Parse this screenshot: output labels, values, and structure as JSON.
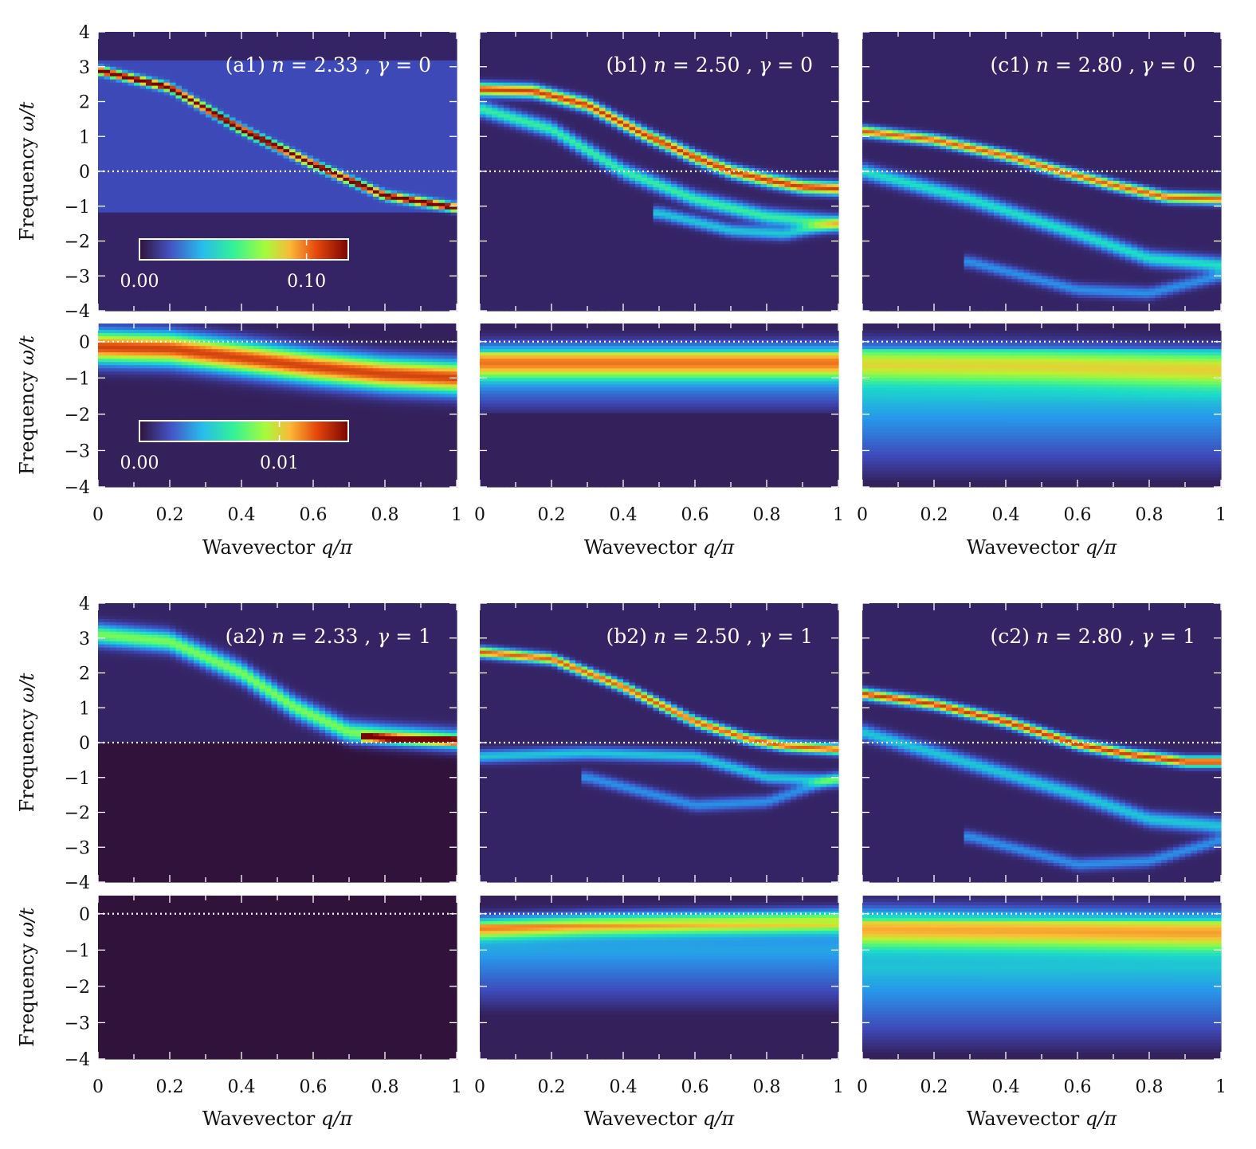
{
  "figure": {
    "xlabel_prefix": "Wavevector",
    "xlabel_math": "q/π",
    "ylabel_prefix": "Frequency",
    "ylabel_math": "ω/t",
    "x_ticks": [
      "0",
      "0.2",
      "0.4",
      "0.6",
      "0.8",
      "1"
    ],
    "y_ticks_top": [
      "4",
      "3",
      "2",
      "1",
      "0",
      "−1",
      "−2",
      "−3",
      "−4"
    ],
    "y_ticks_bottom": [
      "0",
      "−1",
      "−2",
      "−3",
      "−4"
    ],
    "colorbar_top": {
      "min_label": "0.00",
      "max_label": "0.10"
    },
    "colorbar_bottom": {
      "min_label": "0.00",
      "max_label": "0.01"
    }
  },
  "chart_data": [
    {
      "type": "heatmap",
      "id": "a1",
      "title": "(a1) n = 2.33 , γ = 0",
      "label_tag": "(a1)",
      "n": "2.33",
      "gamma": "0",
      "xlim": [
        0,
        1
      ],
      "ylim_top": [
        -4,
        4
      ],
      "ylim_bottom": [
        -4,
        0.5
      ],
      "upper_bands": [
        {
          "x": [
            0,
            0.2,
            0.4,
            0.6,
            0.8,
            1.0
          ],
          "y": [
            2.9,
            2.4,
            1.2,
            0.2,
            -0.7,
            -1.05
          ],
          "width": 0.08,
          "intensity": 1.0
        }
      ],
      "lower_bands": [
        {
          "x": [
            0,
            0.2,
            0.4,
            0.6,
            0.8,
            1.0
          ],
          "y": [
            -0.15,
            -0.2,
            -0.45,
            -0.7,
            -0.9,
            -1.0
          ],
          "width": 0.3,
          "intensity": 0.85
        }
      ]
    },
    {
      "type": "heatmap",
      "id": "b1",
      "title": "(b1) n = 2.50 , γ = 0",
      "label_tag": "(b1)",
      "n": "2.50",
      "gamma": "0",
      "xlim": [
        0,
        1
      ],
      "ylim_top": [
        -4,
        4
      ],
      "ylim_bottom": [
        -4,
        0.5
      ],
      "upper_bands": [
        {
          "x": [
            0,
            0.15,
            0.3,
            0.45,
            0.6,
            0.7,
            0.8,
            0.9,
            1.0
          ],
          "y": [
            2.35,
            2.3,
            1.9,
            1.1,
            0.4,
            0.0,
            -0.25,
            -0.45,
            -0.5
          ],
          "width": 0.12,
          "intensity": 0.85
        },
        {
          "x": [
            0,
            0.2,
            0.4,
            0.6,
            0.8,
            1.0
          ],
          "y": [
            1.8,
            1.2,
            0.0,
            -0.8,
            -1.3,
            -1.5
          ],
          "width": 0.15,
          "intensity": 0.4
        },
        {
          "x": [
            0.5,
            0.7,
            0.85,
            1.0
          ],
          "y": [
            -1.2,
            -1.7,
            -1.8,
            -1.5
          ],
          "width": 0.12,
          "intensity": 0.3
        }
      ],
      "lower_bands": [
        {
          "x": [
            0,
            0.1,
            0.3,
            0.6,
            1.0
          ],
          "y": [
            -0.55,
            -0.55,
            -0.55,
            -0.55,
            -0.55
          ],
          "width": 0.3,
          "intensity": 0.55
        }
      ]
    },
    {
      "type": "heatmap",
      "id": "c1",
      "title": "(c1) n = 2.80 , γ = 0",
      "label_tag": "(c1)",
      "n": "2.80",
      "gamma": "0",
      "xlim": [
        0,
        1
      ],
      "ylim_top": [
        -4,
        4
      ],
      "ylim_bottom": [
        -4,
        0.5
      ],
      "upper_bands": [
        {
          "x": [
            0,
            0.2,
            0.4,
            0.55,
            0.7,
            0.85,
            1.0
          ],
          "y": [
            1.15,
            0.9,
            0.45,
            0.0,
            -0.4,
            -0.75,
            -0.8
          ],
          "width": 0.1,
          "intensity": 0.8
        },
        {
          "x": [
            0,
            0.3,
            0.6,
            0.8,
            1.0
          ],
          "y": [
            0.0,
            -0.8,
            -1.8,
            -2.5,
            -2.7
          ],
          "width": 0.15,
          "intensity": 0.35
        },
        {
          "x": [
            0.3,
            0.6,
            0.8,
            1.0
          ],
          "y": [
            -2.6,
            -3.4,
            -3.5,
            -3.0
          ],
          "width": 0.12,
          "intensity": 0.2
        }
      ],
      "lower_bands": [
        {
          "x": [
            0,
            0.5,
            1.0
          ],
          "y": [
            -0.6,
            -0.65,
            -0.75
          ],
          "width": 0.35,
          "intensity": 0.45
        }
      ]
    },
    {
      "type": "heatmap",
      "id": "a2",
      "title": "(a2) n = 2.33 , γ = 1",
      "label_tag": "(a2)",
      "n": "2.33",
      "gamma": "1",
      "xlim": [
        0,
        1
      ],
      "ylim_top": [
        -4,
        4
      ],
      "ylim_bottom": [
        -4,
        0.5
      ],
      "upper_bands": [
        {
          "x": [
            0,
            0.2,
            0.4,
            0.55,
            0.7,
            0.8,
            1.0
          ],
          "y": [
            3.1,
            2.9,
            2.0,
            1.0,
            0.3,
            0.2,
            0.05
          ],
          "width": 0.2,
          "intensity": 0.5
        },
        {
          "x": [
            0.75,
            0.85,
            1.0
          ],
          "y": [
            0.15,
            0.1,
            0.05
          ],
          "width": 0.07,
          "intensity": 0.95
        }
      ],
      "lower_bands": []
    },
    {
      "type": "heatmap",
      "id": "b2",
      "title": "(b2) n = 2.50 , γ = 1",
      "label_tag": "(b2)",
      "n": "2.50",
      "gamma": "1",
      "xlim": [
        0,
        1
      ],
      "ylim_top": [
        -4,
        4
      ],
      "ylim_bottom": [
        -4,
        0.5
      ],
      "upper_bands": [
        {
          "x": [
            0,
            0.2,
            0.4,
            0.6,
            0.75,
            0.85,
            1.0
          ],
          "y": [
            2.6,
            2.4,
            1.6,
            0.6,
            0.1,
            -0.1,
            -0.2
          ],
          "width": 0.1,
          "intensity": 0.8
        },
        {
          "x": [
            0,
            0.3,
            0.6,
            0.8,
            1.0
          ],
          "y": [
            -0.4,
            -0.3,
            -0.4,
            -1.0,
            -1.1
          ],
          "width": 0.12,
          "intensity": 0.3
        },
        {
          "x": [
            0.3,
            0.6,
            0.8,
            1.0
          ],
          "y": [
            -1.0,
            -1.8,
            -1.7,
            -1.0
          ],
          "width": 0.12,
          "intensity": 0.2
        }
      ],
      "lower_bands": [
        {
          "x": [
            0,
            0.3,
            0.6,
            1.0
          ],
          "y": [
            -0.4,
            -0.3,
            -0.25,
            -0.2
          ],
          "width": 0.2,
          "intensity": 0.6
        }
      ]
    },
    {
      "type": "heatmap",
      "id": "c2",
      "title": "(c2) n = 2.80 , γ = 1",
      "label_tag": "(c2)",
      "n": "2.80",
      "gamma": "1",
      "xlim": [
        0,
        1
      ],
      "ylim_top": [
        -4,
        4
      ],
      "ylim_bottom": [
        -4,
        0.5
      ],
      "upper_bands": [
        {
          "x": [
            0,
            0.2,
            0.4,
            0.6,
            0.75,
            0.9,
            1.0
          ],
          "y": [
            1.4,
            1.1,
            0.6,
            -0.05,
            -0.35,
            -0.55,
            -0.55
          ],
          "width": 0.1,
          "intensity": 0.85
        },
        {
          "x": [
            0,
            0.3,
            0.6,
            0.8,
            1.0
          ],
          "y": [
            0.3,
            -0.6,
            -1.5,
            -2.2,
            -2.4
          ],
          "width": 0.15,
          "intensity": 0.3
        },
        {
          "x": [
            0.3,
            0.6,
            0.8,
            1.0
          ],
          "y": [
            -2.7,
            -3.5,
            -3.4,
            -2.8
          ],
          "width": 0.12,
          "intensity": 0.2
        }
      ],
      "lower_bands": [
        {
          "x": [
            0,
            0.5,
            0.9,
            1.0
          ],
          "y": [
            -0.4,
            -0.45,
            -0.5,
            -0.5
          ],
          "width": 0.35,
          "intensity": 0.55
        }
      ]
    }
  ]
}
